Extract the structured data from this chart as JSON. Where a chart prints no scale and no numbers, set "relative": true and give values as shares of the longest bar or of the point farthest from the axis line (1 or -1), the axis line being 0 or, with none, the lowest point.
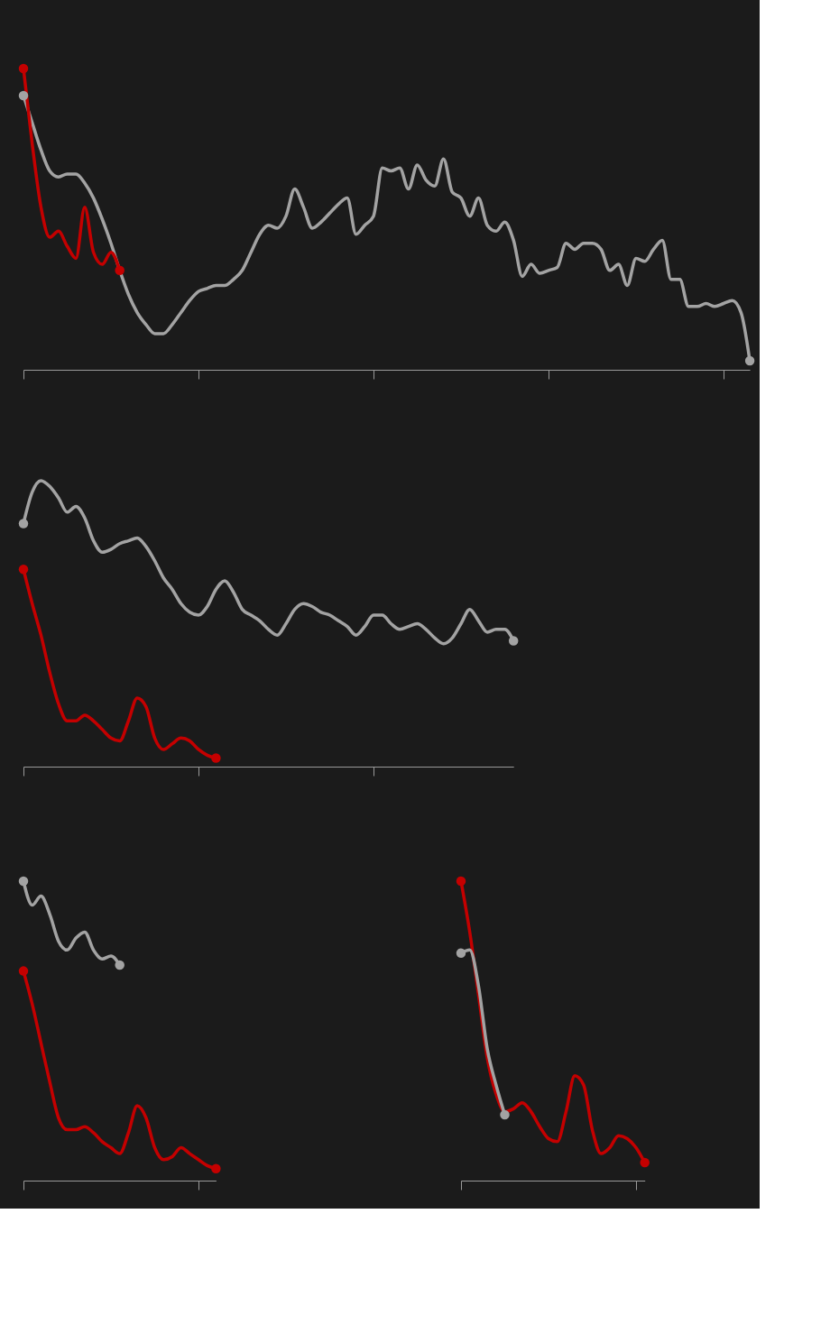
{
  "chart_data": [
    {
      "type": "line",
      "relative": true,
      "tick_labels": false,
      "grid": false,
      "categories": [
        null,
        null,
        null,
        null,
        null,
        null,
        null,
        null,
        null,
        null,
        null,
        null,
        null,
        null,
        null,
        null,
        null,
        null,
        null,
        null,
        null,
        null,
        null,
        null,
        null,
        null,
        null,
        null,
        null,
        null,
        null,
        null,
        null,
        null,
        null,
        null,
        null,
        null,
        null,
        null,
        null,
        null,
        null,
        null,
        null,
        null,
        null,
        null,
        null,
        null,
        null,
        null,
        null,
        null,
        null,
        null,
        null,
        null,
        null,
        null,
        null,
        null,
        null,
        null,
        null,
        null,
        null,
        null,
        null,
        null,
        null,
        null,
        null,
        null,
        null,
        null,
        null,
        null,
        null,
        null,
        null,
        null,
        null,
        null
      ],
      "series": [
        {
          "color": "#a3a3a3",
          "values": [
            0.91,
            0.82,
            0.73,
            0.66,
            0.64,
            0.65,
            0.65,
            0.62,
            0.57,
            0.5,
            0.42,
            0.33,
            0.25,
            0.19,
            0.15,
            0.12,
            0.12,
            0.15,
            0.19,
            0.23,
            0.26,
            0.27,
            0.28,
            0.28,
            0.3,
            0.33,
            0.39,
            0.45,
            0.48,
            0.47,
            0.51,
            0.6,
            0.54,
            0.47,
            0.49,
            0.52,
            0.55,
            0.57,
            0.45,
            0.48,
            0.51,
            0.67,
            0.66,
            0.67,
            0.6,
            0.68,
            0.63,
            0.61,
            0.7,
            0.59,
            0.57,
            0.51,
            0.57,
            0.48,
            0.46,
            0.49,
            0.43,
            0.31,
            0.35,
            0.32,
            0.33,
            0.34,
            0.42,
            0.4,
            0.42,
            0.42,
            0.4,
            0.33,
            0.35,
            0.28,
            0.37,
            0.36,
            0.4,
            0.43,
            0.3,
            0.3,
            0.21,
            0.21,
            0.22,
            0.21,
            0.22,
            0.23,
            0.19,
            0.03
          ]
        },
        {
          "color": "#c40000",
          "values": [
            1.0,
            0.75,
            0.54,
            0.44,
            0.46,
            0.41,
            0.37,
            0.54,
            0.39,
            0.35,
            0.39,
            0.33,
            null,
            null,
            null,
            null,
            null,
            null,
            null,
            null,
            null,
            null,
            null,
            null,
            null,
            null,
            null,
            null,
            null,
            null,
            null,
            null,
            null,
            null,
            null,
            null,
            null,
            null,
            null,
            null,
            null,
            null,
            null,
            null,
            null,
            null,
            null,
            null,
            null,
            null,
            null,
            null,
            null,
            null,
            null,
            null,
            null,
            null,
            null,
            null,
            null,
            null,
            null,
            null,
            null,
            null,
            null,
            null,
            null,
            null,
            null,
            null,
            null,
            null,
            null,
            null,
            null,
            null,
            null,
            null,
            null,
            null,
            null,
            null
          ]
        }
      ]
    },
    {
      "type": "line",
      "relative": true,
      "tick_labels": false,
      "grid": false,
      "categories": [
        null,
        null,
        null,
        null,
        null,
        null,
        null,
        null,
        null,
        null,
        null,
        null,
        null,
        null,
        null,
        null,
        null,
        null,
        null,
        null,
        null,
        null,
        null,
        null,
        null,
        null,
        null,
        null,
        null,
        null,
        null,
        null,
        null,
        null,
        null,
        null,
        null,
        null,
        null,
        null,
        null,
        null,
        null,
        null,
        null,
        null,
        null,
        null,
        null,
        null,
        null,
        null,
        null,
        null,
        null,
        null,
        null
      ],
      "series": [
        {
          "color": "#a3a3a3",
          "values": [
            0.85,
            0.96,
            1.0,
            0.98,
            0.94,
            0.89,
            0.91,
            0.87,
            0.79,
            0.75,
            0.76,
            0.78,
            0.79,
            0.8,
            0.77,
            0.72,
            0.66,
            0.62,
            0.57,
            0.54,
            0.53,
            0.56,
            0.62,
            0.65,
            0.61,
            0.55,
            0.53,
            0.51,
            0.48,
            0.46,
            0.5,
            0.55,
            0.57,
            0.56,
            0.54,
            0.53,
            0.51,
            0.49,
            0.46,
            0.49,
            0.53,
            0.53,
            0.5,
            0.48,
            0.49,
            0.5,
            0.48,
            0.45,
            0.43,
            0.45,
            0.5,
            0.55,
            0.51,
            0.47,
            0.48,
            0.48,
            0.44
          ]
        },
        {
          "color": "#c40000",
          "values": [
            0.69,
            0.57,
            0.46,
            0.33,
            0.22,
            0.16,
            0.16,
            0.18,
            0.16,
            0.13,
            0.1,
            0.09,
            0.16,
            0.24,
            0.21,
            0.1,
            0.06,
            0.08,
            0.1,
            0.09,
            0.06,
            0.04,
            0.03,
            null,
            null,
            null,
            null,
            null,
            null,
            null,
            null,
            null,
            null,
            null,
            null,
            null,
            null,
            null,
            null,
            null,
            null,
            null,
            null,
            null,
            null,
            null,
            null,
            null,
            null,
            null,
            null,
            null,
            null,
            null,
            null,
            null,
            null
          ]
        }
      ]
    },
    {
      "type": "line",
      "relative": true,
      "tick_labels": false,
      "grid": false,
      "categories": [
        null,
        null,
        null,
        null,
        null,
        null,
        null,
        null,
        null,
        null,
        null,
        null,
        null,
        null,
        null,
        null,
        null,
        null,
        null,
        null,
        null,
        null,
        null
      ],
      "series": [
        {
          "color": "#a3a3a3",
          "values": [
            1.0,
            0.92,
            0.95,
            0.89,
            0.8,
            0.77,
            0.81,
            0.83,
            0.77,
            0.74,
            0.75,
            0.72,
            null,
            null,
            null,
            null,
            null,
            null,
            null,
            null,
            null,
            null,
            null
          ]
        },
        {
          "color": "#c40000",
          "values": [
            0.7,
            0.59,
            0.46,
            0.33,
            0.21,
            0.17,
            0.17,
            0.18,
            0.16,
            0.13,
            0.11,
            0.09,
            0.16,
            0.25,
            0.21,
            0.11,
            0.07,
            0.08,
            0.11,
            0.09,
            0.07,
            0.05,
            0.04
          ]
        }
      ]
    },
    {
      "type": "line",
      "relative": true,
      "tick_labels": false,
      "grid": false,
      "categories": [
        null,
        null,
        null,
        null,
        null,
        null,
        null,
        null,
        null,
        null,
        null,
        null,
        null,
        null,
        null,
        null,
        null,
        null,
        null,
        null,
        null,
        null
      ],
      "series": [
        {
          "color": "#c40000",
          "values": [
            1.0,
            0.83,
            0.62,
            0.41,
            0.29,
            0.23,
            0.24,
            0.26,
            0.23,
            0.18,
            0.14,
            0.13,
            0.23,
            0.35,
            0.32,
            0.17,
            0.09,
            0.11,
            0.15,
            0.14,
            0.11,
            0.06
          ]
        },
        {
          "color": "#a3a3a3",
          "values": [
            0.76,
            0.77,
            0.65,
            0.44,
            0.32,
            0.22,
            null,
            null,
            null,
            null,
            null,
            null,
            null,
            null,
            null,
            null,
            null,
            null,
            null,
            null,
            null,
            null
          ]
        }
      ]
    }
  ]
}
